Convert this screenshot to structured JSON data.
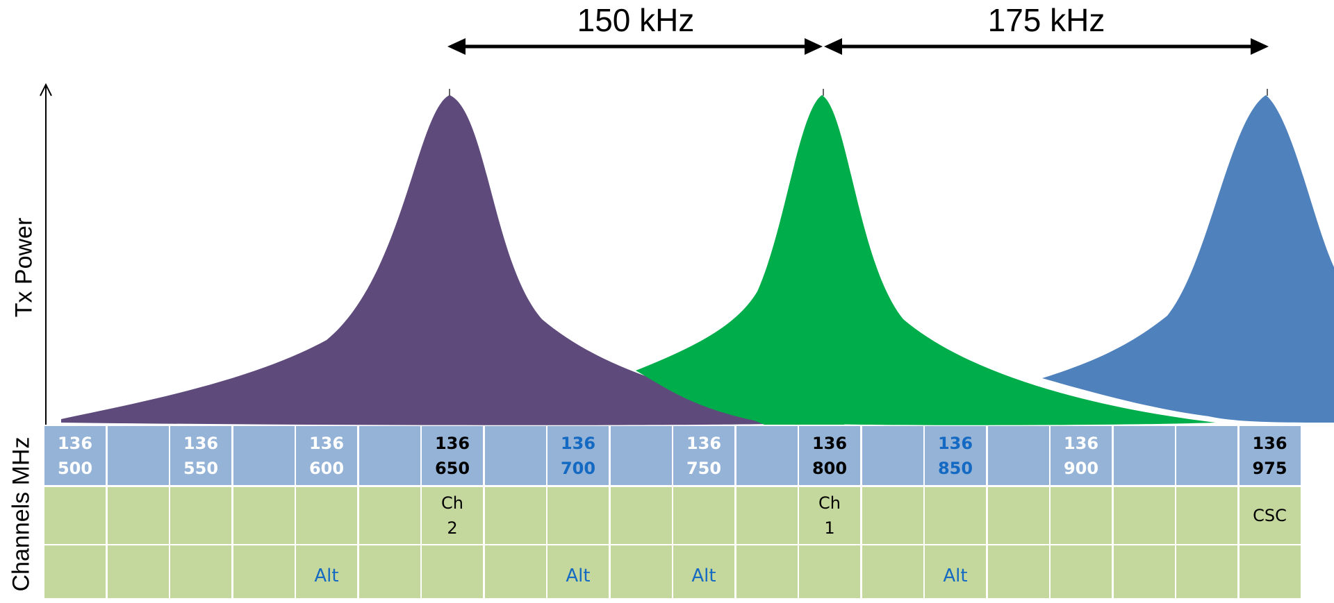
{
  "y_axis_label": "Tx Power",
  "row_label": "Channels MHz",
  "spacing_labels": [
    "150 kHz",
    "175 kHz"
  ],
  "colors": {
    "ch2_peak": "#5f4b7b",
    "ch1_peak": "#00ad4b",
    "csc_peak": "#4f81bd",
    "freq_cell": "#94b3d7",
    "chan_cell": "#c4d79c",
    "alt_text": "#1469c2"
  },
  "channels": [
    {
      "line1": "136",
      "line2": "500",
      "style": "white",
      "label": "",
      "alt": ""
    },
    {
      "line1": "",
      "line2": "",
      "style": "white",
      "label": "",
      "alt": ""
    },
    {
      "line1": "136",
      "line2": "550",
      "style": "white",
      "label": "",
      "alt": ""
    },
    {
      "line1": "",
      "line2": "",
      "style": "white",
      "label": "",
      "alt": ""
    },
    {
      "line1": "136",
      "line2": "600",
      "style": "white",
      "label": "",
      "alt": "Alt"
    },
    {
      "line1": "",
      "line2": "",
      "style": "white",
      "label": "",
      "alt": ""
    },
    {
      "line1": "136",
      "line2": "650",
      "style": "dark",
      "label": "Ch\n2",
      "alt": ""
    },
    {
      "line1": "",
      "line2": "",
      "style": "white",
      "label": "",
      "alt": ""
    },
    {
      "line1": "136",
      "line2": "700",
      "style": "blue",
      "label": "",
      "alt": "Alt"
    },
    {
      "line1": "",
      "line2": "",
      "style": "white",
      "label": "",
      "alt": ""
    },
    {
      "line1": "136",
      "line2": "750",
      "style": "white",
      "label": "",
      "alt": "Alt"
    },
    {
      "line1": "",
      "line2": "",
      "style": "white",
      "label": "",
      "alt": ""
    },
    {
      "line1": "136",
      "line2": "800",
      "style": "dark",
      "label": "Ch\n1",
      "alt": ""
    },
    {
      "line1": "",
      "line2": "",
      "style": "white",
      "label": "",
      "alt": ""
    },
    {
      "line1": "136",
      "line2": "850",
      "style": "blue",
      "label": "",
      "alt": "Alt"
    },
    {
      "line1": "",
      "line2": "",
      "style": "white",
      "label": "",
      "alt": ""
    },
    {
      "line1": "136",
      "line2": "900",
      "style": "white",
      "label": "",
      "alt": ""
    },
    {
      "line1": "",
      "line2": "",
      "style": "white",
      "label": "",
      "alt": ""
    },
    {
      "line1": "",
      "line2": "",
      "style": "white",
      "label": "",
      "alt": ""
    },
    {
      "line1": "136",
      "line2": "975",
      "style": "dark",
      "label": "CSC",
      "alt": ""
    }
  ]
}
